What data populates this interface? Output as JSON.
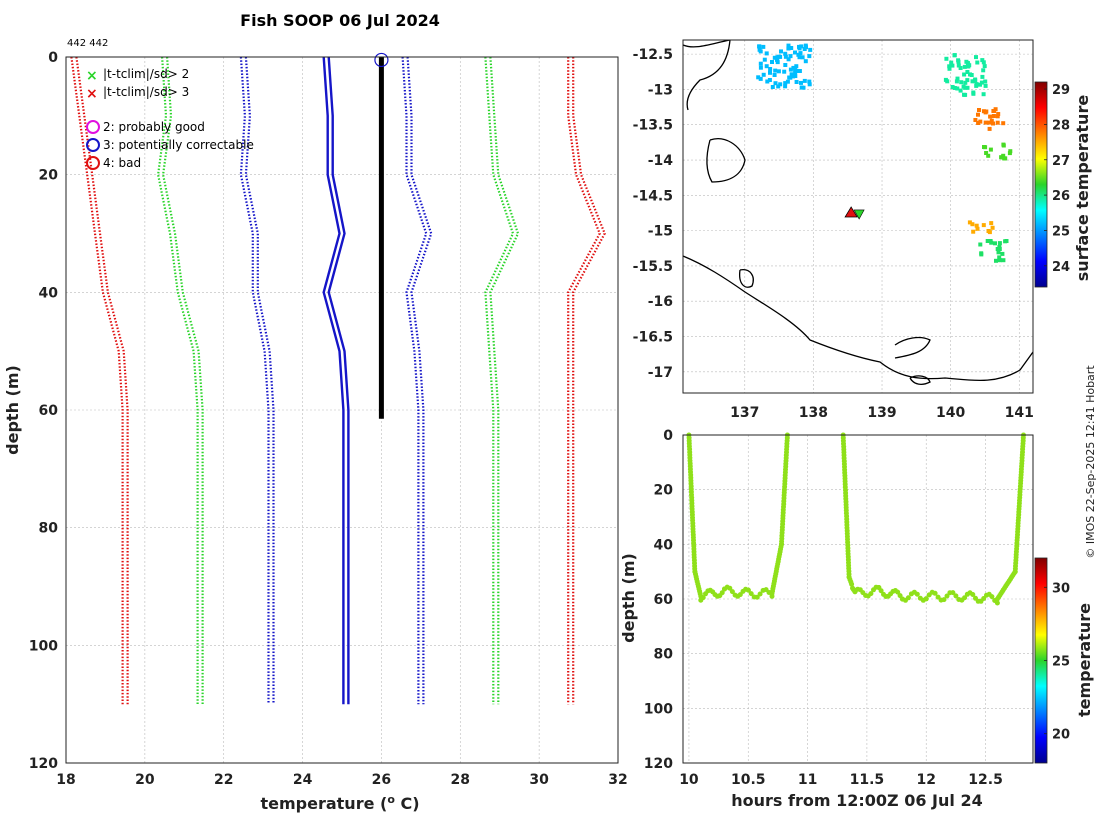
{
  "title": "Fish SOOP 06 Jul 2024",
  "counts": "442 442",
  "credit": "© IMOS 22-Sep-2025 12:41 Hobart",
  "legend": {
    "x2": "|t-tclim|/sd> 2",
    "x3": "|t-tclim|/sd> 3",
    "q2": "2: probably good",
    "q3": "3: potentially correctable",
    "q4": "4: bad"
  },
  "colors": {
    "red": "#e01010",
    "green": "#2ad42a",
    "blue": "#1515c8",
    "black": "#000000",
    "magenta": "#e010e0",
    "trace": "#8fe01a"
  },
  "chart_data": [
    {
      "type": "line",
      "name": "profile",
      "xlabel": "temperature (o C)",
      "ylabel": "depth (m)",
      "xlim": [
        18,
        32
      ],
      "ylim": [
        0,
        120
      ],
      "xticks": [
        18,
        20,
        22,
        24,
        26,
        28,
        30,
        32
      ],
      "yticks": [
        0,
        20,
        40,
        60,
        80,
        100,
        120
      ],
      "depths": [
        0,
        10,
        20,
        30,
        40,
        50,
        60,
        110
      ],
      "series": [
        {
          "name": "clim-3sd-lo",
          "style": "dotted",
          "color": "red",
          "values": [
            18.2,
            18.4,
            18.6,
            18.8,
            19.0,
            19.4,
            19.5,
            19.5
          ]
        },
        {
          "name": "clim-2sd-lo",
          "style": "dotted",
          "color": "green",
          "values": [
            20.5,
            20.6,
            20.4,
            20.7,
            20.9,
            21.3,
            21.4,
            21.4
          ]
        },
        {
          "name": "clim-1sd-lo",
          "style": "dotted",
          "color": "blue",
          "values": [
            22.5,
            22.6,
            22.5,
            22.8,
            22.8,
            23.1,
            23.2,
            23.2
          ]
        },
        {
          "name": "clim-mean",
          "style": "solid",
          "color": "blue",
          "values": [
            24.6,
            24.7,
            24.7,
            25.0,
            24.6,
            25.0,
            25.1,
            25.1
          ]
        },
        {
          "name": "clim-1sd-hi",
          "style": "dotted",
          "color": "blue",
          "values": [
            26.6,
            26.7,
            26.7,
            27.2,
            26.7,
            26.9,
            27.0,
            27.0
          ]
        },
        {
          "name": "clim-2sd-hi",
          "style": "dotted",
          "color": "green",
          "values": [
            28.7,
            28.8,
            28.9,
            29.4,
            28.7,
            28.8,
            28.9,
            28.9
          ]
        },
        {
          "name": "clim-3sd-hi",
          "style": "dotted",
          "color": "red",
          "values": [
            30.8,
            30.8,
            31.0,
            31.6,
            30.8,
            30.8,
            30.8,
            30.8
          ]
        }
      ],
      "observed": {
        "depth": [
          0,
          10,
          20,
          30,
          40,
          50,
          60,
          61.5
        ],
        "temperature": [
          26.0,
          26.0,
          26.0,
          26.0,
          26.0,
          26.0,
          26.0,
          26.0
        ]
      },
      "flag_marker": {
        "temperature": 26.0,
        "depth": 0.5,
        "flag": "3"
      }
    },
    {
      "type": "heatmap",
      "name": "map",
      "ylabel_cb": "surface temperature",
      "xlim": [
        136.1,
        141.2
      ],
      "ylim": [
        -17.3,
        -12.3
      ],
      "xticks": [
        137,
        138,
        139,
        140,
        141
      ],
      "yticks": [
        -12.5,
        -13,
        -13.5,
        -14,
        -14.5,
        -15,
        -15.5,
        -16,
        -16.5,
        -17
      ],
      "clim": [
        23.4,
        29.2
      ],
      "cbticks": [
        24,
        25,
        26,
        27,
        28,
        29
      ],
      "station": {
        "lon": 138.55,
        "lat": -14.75
      },
      "patches": [
        {
          "lon": [
            137.15,
            137.95
          ],
          "lat": [
            -12.35,
            -12.95
          ],
          "value": 25.2
        },
        {
          "lon": [
            139.9,
            140.5
          ],
          "lat": [
            -12.45,
            -13.05
          ],
          "value": 25.9
        },
        {
          "lon": [
            140.3,
            140.75
          ],
          "lat": [
            -13.25,
            -13.55
          ],
          "value": 27.8
        },
        {
          "lon": [
            140.4,
            140.85
          ],
          "lat": [
            -13.75,
            -13.95
          ],
          "value": 26.4
        },
        {
          "lon": [
            140.2,
            140.6
          ],
          "lat": [
            -14.85,
            -15.0
          ],
          "value": 27.5
        },
        {
          "lon": [
            140.4,
            140.8
          ],
          "lat": [
            -15.1,
            -15.4
          ],
          "value": 26.1
        }
      ]
    },
    {
      "type": "scatter",
      "name": "track",
      "xlabel": "hours from 12:00Z 06 Jul 24",
      "ylabel": "depth (m)",
      "ylabel_cb": "temperature",
      "xlim": [
        9.95,
        12.9
      ],
      "ylim": [
        0,
        120
      ],
      "xticks": [
        10,
        10.5,
        11,
        11.5,
        12,
        12.5
      ],
      "yticks": [
        0,
        20,
        40,
        60,
        80,
        100,
        120
      ],
      "clim": [
        18,
        32
      ],
      "cbticks": [
        20,
        25,
        30
      ],
      "temperature": 26.0,
      "segments": [
        {
          "hours": [
            10.0,
            10.05,
            10.1,
            10.3,
            10.5,
            10.7,
            10.78,
            10.83
          ],
          "depth": [
            0,
            50,
            59,
            57,
            58,
            58,
            40,
            0
          ]
        },
        {
          "hours": [
            11.3,
            11.35,
            11.4,
            11.6,
            11.8,
            12.0,
            12.3,
            12.6,
            12.75,
            12.82
          ],
          "depth": [
            0,
            52,
            58,
            57,
            59,
            59,
            59,
            60,
            50,
            0
          ]
        }
      ]
    }
  ]
}
